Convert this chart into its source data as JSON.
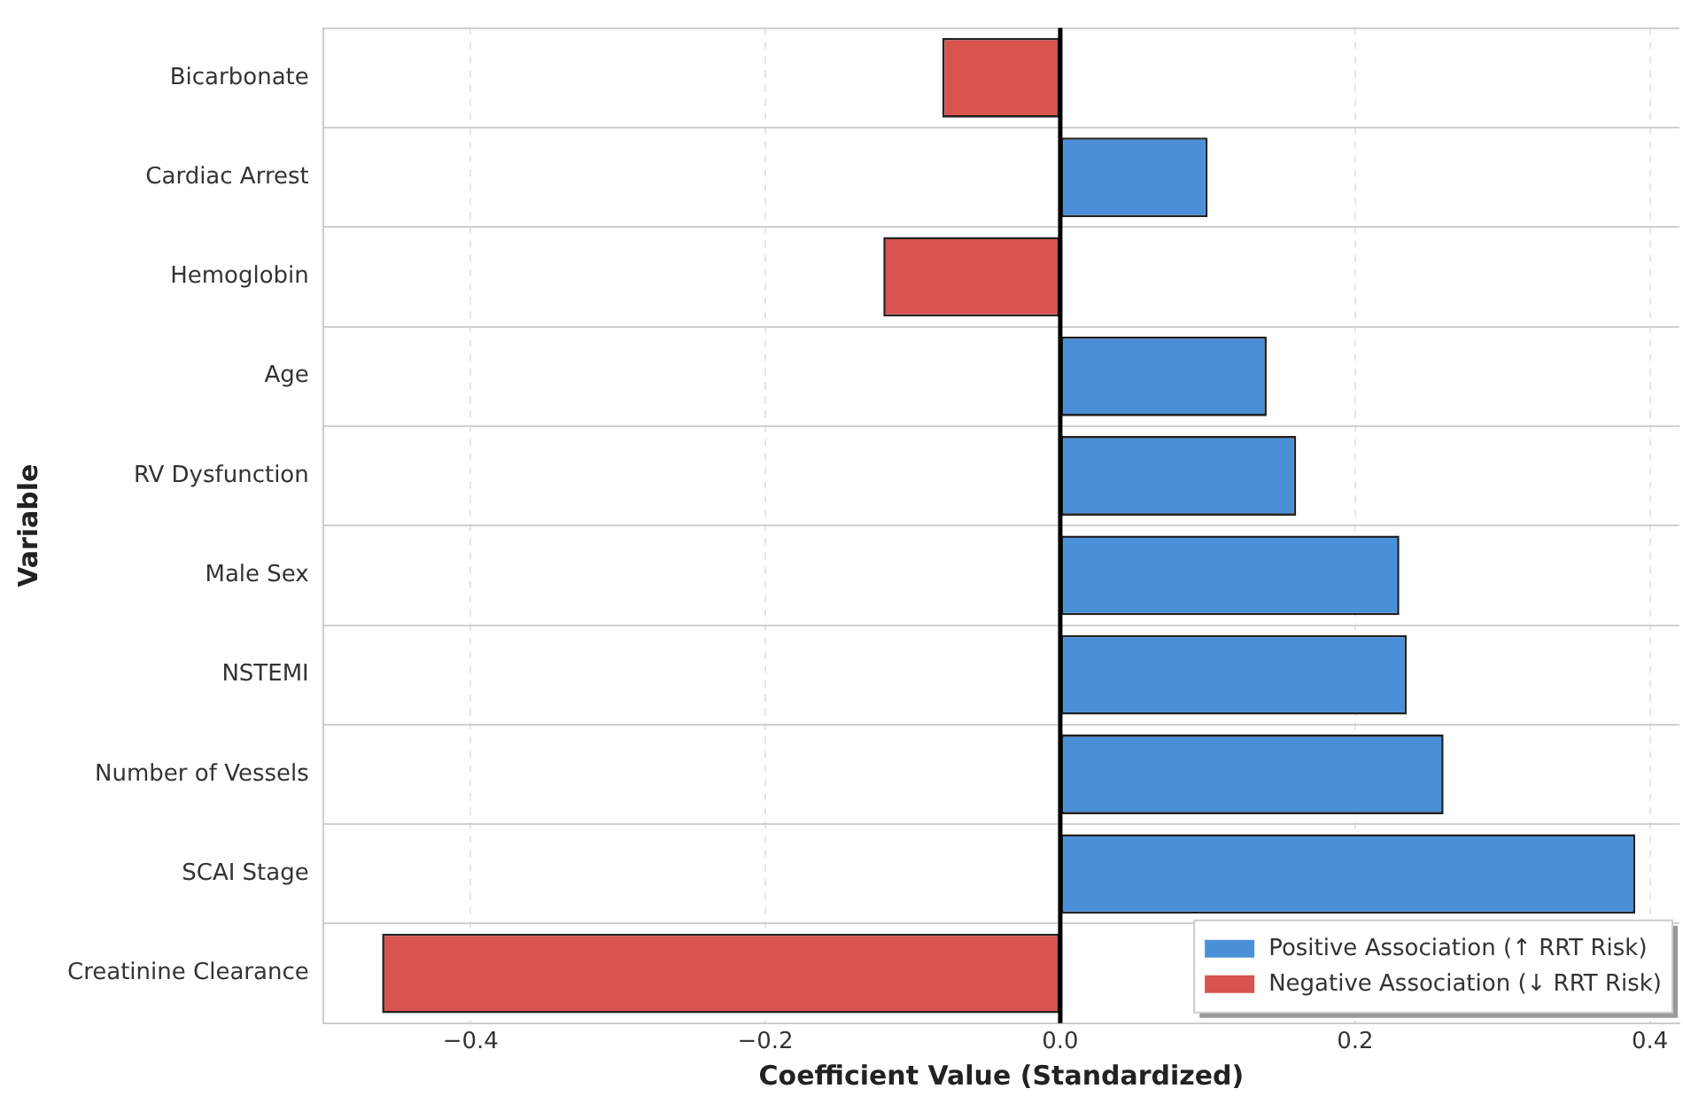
{
  "chart_data": {
    "type": "bar",
    "orientation": "horizontal",
    "xlabel": "Coefficient Value (Standardized)",
    "ylabel": "Variable",
    "categories": [
      "Bicarbonate",
      "Cardiac Arrest",
      "Hemoglobin",
      "Age",
      "RV Dysfunction",
      "Male Sex",
      "NSTEMI",
      "Number of Vessels",
      "SCAI Stage",
      "Creatinine Clearance"
    ],
    "series": [
      {
        "name": "Positive Association (↑ RRT Risk)",
        "color": "#4a90d9",
        "values": [
          null,
          0.1,
          null,
          0.14,
          0.16,
          0.23,
          0.235,
          0.26,
          0.39,
          null
        ]
      },
      {
        "name": "Negative Association (↓ RRT Risk)",
        "color": "#d9534f",
        "values": [
          -0.08,
          null,
          -0.12,
          null,
          null,
          null,
          null,
          null,
          null,
          -0.46
        ]
      }
    ],
    "xlim": [
      -0.5,
      0.42
    ],
    "xticks": [
      {
        "value": -0.4,
        "label": "−0.4"
      },
      {
        "value": -0.2,
        "label": "−0.2"
      },
      {
        "value": 0,
        "label": "0.0"
      },
      0.2,
      0.4
    ],
    "ref_lines": [
      {
        "axis": "x",
        "value": 0,
        "color": "#000000"
      }
    ],
    "grid": true,
    "legend": "bottom right"
  }
}
